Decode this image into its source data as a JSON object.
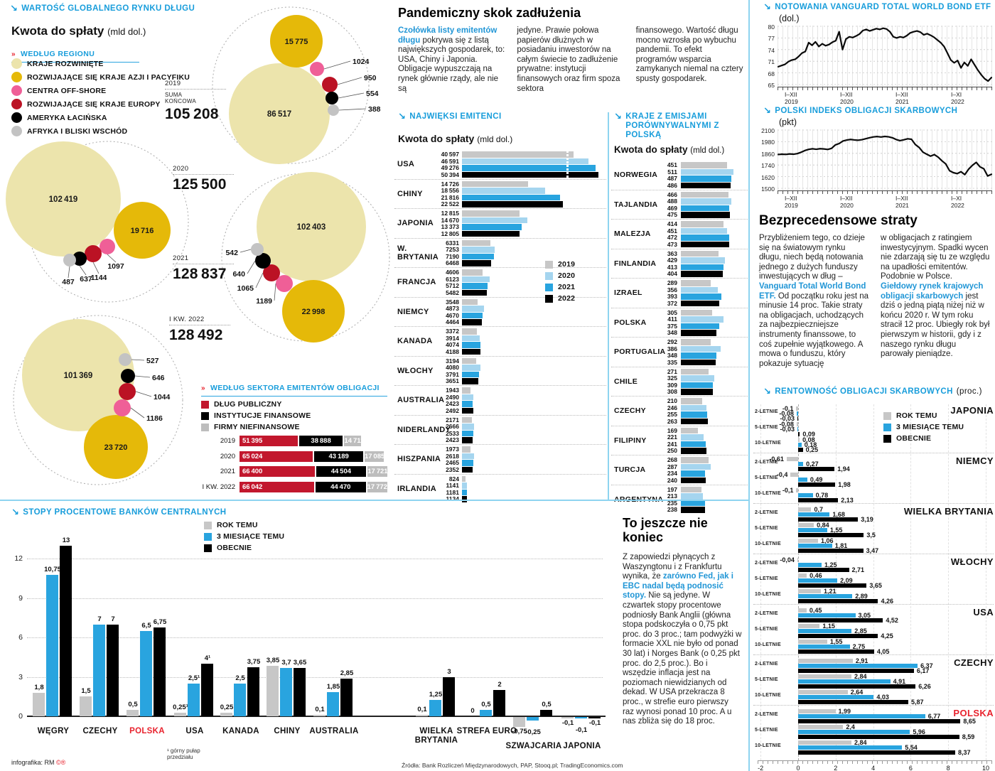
{
  "colors": {
    "accent": "#189ddb",
    "bar_gray": "#c7c7c7",
    "bar_lightblue": "#a5d5ef",
    "bar_blue": "#29a4df",
    "bar_black": "#000000",
    "public_red": "#c2172d",
    "polska_red": "#e8222d",
    "region_developed": "#ece4ac",
    "region_asia": "#e5b909",
    "region_offshore": "#ef5f97",
    "region_europe": "#bb1224",
    "region_latam": "#000000",
    "region_africa": "#c3c3c3"
  },
  "chart_data": [
    {
      "key": "global_debt_bubbles",
      "type": "bubble",
      "title": "WARTOŚĆ GLOBALNEGO RYNKU DŁUGU",
      "subtitle": "Kwota do spłaty",
      "unit": "(mld dol.)",
      "group_label": "WEDŁUG REGIONU",
      "sum_label": "SUMA KOŃCOWA",
      "legend": [
        "KRAJE ROZWINIĘTE",
        "ROZWIJAJĄCE SIĘ KRAJE AZJI I PACYFIKU",
        "CENTRA OFF-SHORE",
        "ROZWIJAJĄCE SIĘ KRAJE EUROPY",
        "AMERYKA ŁACIŃSKA",
        "AFRYKA I BLISKI WSCHÓD"
      ],
      "regions_order": [
        "developed",
        "asia_pacific",
        "offshore",
        "emerging_europe",
        "latin_america",
        "africa_middle_east"
      ],
      "years": [
        {
          "label": "2019",
          "total": 105208,
          "values": {
            "developed": 86517,
            "asia_pacific": 15775,
            "offshore": 1024,
            "emerging_europe": 950,
            "latin_america": 554,
            "africa_middle_east": 388
          }
        },
        {
          "label": "2020",
          "total": 125500,
          "values": {
            "developed": 102419,
            "asia_pacific": 19716,
            "offshore": 1097,
            "emerging_europe": 1144,
            "latin_america": 637,
            "africa_middle_east": 487
          }
        },
        {
          "label": "2021",
          "total": 128837,
          "values": {
            "developed": 102403,
            "asia_pacific": 22998,
            "offshore": 1189,
            "emerging_europe": 1065,
            "latin_america": 640,
            "africa_middle_east": 542
          }
        },
        {
          "label": "I KW. 2022",
          "total": 128492,
          "values": {
            "developed": 101369,
            "asia_pacific": 23720,
            "offshore": 1186,
            "emerging_europe": 1044,
            "latin_america": 646,
            "africa_middle_east": 527
          }
        }
      ]
    },
    {
      "key": "sector",
      "type": "stacked_bar",
      "title": "WEDŁUG SEKTORA EMITENTÓW OBLIGACJI",
      "legend": [
        "DŁUG PUBLICZNY",
        "INSTYTUCJE FINANSOWE",
        "FIRMY NIEFINANSOWE"
      ],
      "categories": [
        "2019",
        "2020",
        "2021",
        "I KW. 2022"
      ],
      "series": [
        {
          "name": "DŁUG PUBLICZNY",
          "values": [
            51395,
            65024,
            66400,
            66042
          ]
        },
        {
          "name": "INSTYTUCJE FINANSOWE",
          "values": [
            38888,
            43189,
            44504,
            44470
          ]
        },
        {
          "name": "FIRMY NIEFINANSOWE",
          "values": [
            14711,
            17085,
            17721,
            17772
          ]
        }
      ]
    },
    {
      "key": "emitters",
      "type": "bar",
      "title": "NAJWIĘKSI EMITENCI",
      "subtitle": "Kwota do spłaty",
      "unit": "(mld dol.)",
      "legend": [
        "2019",
        "2020",
        "2021",
        "2022"
      ],
      "rows": [
        {
          "country": "USA",
          "values": [
            40597,
            46591,
            49276,
            50394
          ],
          "broken": true
        },
        {
          "country": "CHINY",
          "values": [
            14726,
            18556,
            21816,
            22522
          ]
        },
        {
          "country": "JAPONIA",
          "values": [
            12815,
            14670,
            13373,
            12805
          ]
        },
        {
          "country": "W. BRYTANIA",
          "values": [
            6331,
            7253,
            7190,
            6468
          ]
        },
        {
          "country": "FRANCJA",
          "values": [
            4606,
            6123,
            5712,
            5482
          ]
        },
        {
          "country": "NIEMCY",
          "values": [
            3548,
            4873,
            4670,
            4464
          ]
        },
        {
          "country": "KANADA",
          "values": [
            3372,
            3914,
            4074,
            4188
          ]
        },
        {
          "country": "WŁOCHY",
          "values": [
            3194,
            4080,
            3791,
            3651
          ]
        },
        {
          "country": "AUSTRALIA",
          "values": [
            1943,
            2490,
            2423,
            2492
          ]
        },
        {
          "country": "NIDERLANDY",
          "values": [
            2171,
            2666,
            2533,
            2423
          ]
        },
        {
          "country": "HISZPANIA",
          "values": [
            1973,
            2618,
            2465,
            2352
          ]
        },
        {
          "country": "IRLANDIA",
          "values": [
            824,
            1141,
            1181,
            1134
          ]
        }
      ]
    },
    {
      "key": "comparable",
      "type": "bar",
      "title1": "KRAJE Z EMISJAMI",
      "title2": "PORÓWNYWALNYMI Z POLSKĄ",
      "subtitle": "Kwota do spłaty",
      "unit": "(mld dol.)",
      "rows": [
        {
          "country": "NORWEGIA",
          "values": [
            451,
            511,
            487,
            486
          ]
        },
        {
          "country": "TAJLANDIA",
          "values": [
            466,
            488,
            469,
            475
          ]
        },
        {
          "country": "MALEZJA",
          "values": [
            414,
            451,
            472,
            473
          ]
        },
        {
          "country": "FINLANDIA",
          "values": [
            363,
            429,
            413,
            404
          ]
        },
        {
          "country": "IZRAEL",
          "values": [
            289,
            356,
            393,
            372
          ]
        },
        {
          "country": "POLSKA",
          "values": [
            305,
            411,
            375,
            348
          ]
        },
        {
          "country": "PORTUGALIA",
          "values": [
            292,
            386,
            348,
            335
          ]
        },
        {
          "country": "CHILE",
          "values": [
            271,
            325,
            309,
            308
          ]
        },
        {
          "country": "CZECHY",
          "values": [
            210,
            246,
            255,
            263
          ]
        },
        {
          "country": "FILIPINY",
          "values": [
            169,
            221,
            241,
            250
          ]
        },
        {
          "country": "TURCJA",
          "values": [
            268,
            287,
            234,
            240
          ]
        },
        {
          "country": "ARGENTYNA",
          "values": [
            197,
            213,
            235,
            238
          ]
        }
      ]
    },
    {
      "key": "vanguard",
      "type": "line",
      "title": "NOTOWANIA VANGUARD TOTAL WORLD BOND ETF",
      "unit": "(dol.)",
      "ylim": [
        65,
        80
      ],
      "yticks": [
        80,
        77,
        74,
        71,
        68,
        65
      ],
      "xticks": [
        "I–XII|2019",
        "I–XII|2020",
        "I–XII|2021",
        "I–XI|2022"
      ],
      "values": [
        69.6,
        69.9,
        70.2,
        70.9,
        71.3,
        71.5,
        72.2,
        73.1,
        73.5,
        75.8,
        75.1,
        76.0,
        74.8,
        75.5,
        75.0,
        75.3,
        75.9,
        76.3,
        78.6,
        74.0,
        76.7,
        77.3,
        77.1,
        77.5,
        78.0,
        78.9,
        79.2,
        78.8,
        79.1,
        79.4,
        79.2,
        79.5,
        79.3,
        78.6,
        77.3,
        77.0,
        77.3,
        77.1,
        77.6,
        78.3,
        78.6,
        78.8,
        78.5,
        77.8,
        78.1,
        77.7,
        77.2,
        76.5,
        75.8,
        74.8,
        73.1,
        71.3,
        70.6,
        71.2,
        69.3,
        70.7,
        69.8,
        71.5,
        70.1,
        68.7,
        67.5,
        66.5,
        65.9,
        66.8
      ]
    },
    {
      "key": "polindex",
      "type": "line",
      "title": "POLSKI INDEKS OBLIGACJI SKARBOWYCH",
      "unit": "(pkt)",
      "ylim": [
        1500,
        2100
      ],
      "yticks": [
        2100,
        1980,
        1860,
        1740,
        1620,
        1500
      ],
      "xticks": [
        "I–XII|2019",
        "I–XII|2020",
        "I–XII|2021",
        "I–XI|2022"
      ],
      "values": [
        1848,
        1851,
        1849,
        1854,
        1851,
        1857,
        1871,
        1889,
        1901,
        1907,
        1902,
        1908,
        1905,
        1900,
        1911,
        1947,
        1961,
        1987,
        1997,
        2003,
        1998,
        1995,
        2001,
        2011,
        2021,
        2029,
        2033,
        2028,
        2034,
        2030,
        2020,
        2002,
        1991,
        2000,
        2010,
        2005,
        1951,
        1921,
        1873,
        1851,
        1831,
        1847,
        1821,
        1783,
        1751,
        1681,
        1661,
        1651,
        1671,
        1641,
        1697,
        1737,
        1767,
        1721,
        1701,
        1627,
        1644
      ]
    },
    {
      "key": "yields",
      "type": "bar",
      "title": "RENTOWNOŚĆ OBLIGACJI SKARBOWYCH",
      "unit": "(proc.)",
      "legend": [
        "ROK TEMU",
        "3 MIESIĄCE TEMU",
        "OBECNIE"
      ],
      "maturities": [
        "2-LETNIE",
        "5-LETNIE",
        "10-LETNIE"
      ],
      "xticks": [
        -2,
        0,
        2,
        4,
        6,
        8,
        10
      ],
      "countries": [
        {
          "name": "JAPONIA",
          "rows": [
            [
              -0.1,
              -0.08,
              -0.03
            ],
            [
              -0.08,
              -0.03,
              0.09
            ],
            [
              0.08,
              0.18,
              0.25
            ]
          ]
        },
        {
          "name": "NIEMCY",
          "rows": [
            [
              -0.61,
              0.27,
              1.94
            ],
            [
              -0.4,
              0.49,
              1.98
            ],
            [
              -0.1,
              0.78,
              2.13
            ]
          ]
        },
        {
          "name": "WIELKA BRYTANIA",
          "rows": [
            [
              0.7,
              1.68,
              3.19
            ],
            [
              0.84,
              1.55,
              3.5
            ],
            [
              1.06,
              1.81,
              3.47
            ]
          ]
        },
        {
          "name": "WŁOCHY",
          "rows": [
            [
              -0.04,
              1.25,
              2.71
            ],
            [
              0.46,
              2.09,
              3.65
            ],
            [
              1.21,
              2.89,
              4.26
            ]
          ]
        },
        {
          "name": "USA",
          "rows": [
            [
              0.45,
              3.05,
              4.52
            ],
            [
              1.15,
              2.85,
              4.25
            ],
            [
              1.55,
              2.75,
              4.05
            ]
          ]
        },
        {
          "name": "CZECHY",
          "rows": [
            [
              2.91,
              6.37,
              6.17
            ],
            [
              2.84,
              4.91,
              6.26
            ],
            [
              2.64,
              4.03,
              5.87
            ]
          ]
        },
        {
          "name": "POLSKA",
          "highlight": true,
          "rows": [
            [
              1.99,
              6.77,
              8.65
            ],
            [
              2.4,
              5.96,
              8.59
            ],
            [
              2.84,
              5.54,
              8.37
            ]
          ]
        }
      ]
    },
    {
      "key": "rates",
      "type": "grouped_bar",
      "title": "STOPY PROCENTOWE BANKÓW CENTRALNYCH",
      "legend": [
        "ROK TEMU",
        "3 MIESIĄCE TEMU",
        "OBECNIE"
      ],
      "yticks": [
        0,
        3,
        6,
        9,
        12
      ],
      "footnote": "¹ górny pułap przedziału",
      "groups": [
        {
          "name": "WĘGRY",
          "values": [
            1.8,
            10.75,
            13
          ],
          "labels": [
            "1,8",
            "10,75",
            "13"
          ]
        },
        {
          "name": "CZECHY",
          "values": [
            1.5,
            7,
            7
          ],
          "labels": [
            "1,5",
            "7",
            "7"
          ]
        },
        {
          "name": "POLSKA",
          "highlight": true,
          "values": [
            0.5,
            6.5,
            6.75
          ],
          "labels": [
            "0,5",
            "6,5",
            "6,75"
          ]
        },
        {
          "name": "USA",
          "values": [
            0.25,
            2.5,
            4
          ],
          "labels": [
            "0,25¹",
            "2,5¹",
            "4¹"
          ],
          "footnote": true
        },
        {
          "name": "KANADA",
          "values": [
            0.25,
            2.5,
            3.75
          ],
          "labels": [
            "0,25",
            "2,5",
            "3,75"
          ]
        },
        {
          "name": "CHINY",
          "values": [
            3.85,
            3.7,
            3.65
          ],
          "labels": [
            "3,85",
            "3,7",
            "3,65"
          ]
        },
        {
          "name": "AUSTRALIA",
          "values": [
            0.1,
            1.85,
            2.85
          ],
          "labels": [
            "0,1",
            "1,85",
            "2,85"
          ]
        },
        {
          "name": "WIELKA BRYTANIA",
          "values": [
            0.1,
            1.25,
            3
          ],
          "labels": [
            "0,1",
            "1,25",
            "3"
          ],
          "gap_before": true
        },
        {
          "name": "STREFA EURO",
          "values": [
            0,
            0.5,
            2
          ],
          "labels": [
            "0",
            "0,5",
            "2"
          ]
        },
        {
          "name": "SZWAJCARIA",
          "values": [
            -0.75,
            -0.25,
            0.5
          ],
          "labels": [
            "-0,75",
            "-0,25",
            "0,5"
          ],
          "low_label": true
        },
        {
          "name": "JAPONIA",
          "values": [
            -0.1,
            -0.1,
            -0.1
          ],
          "labels": [
            "-0,1",
            "-0,1",
            "-0,1"
          ],
          "low_label": true
        }
      ]
    }
  ],
  "articles": {
    "pandemic": {
      "title": "Pandemiczny skok zadłużenia",
      "columns": [
        [
          {
            "t": "Czołówka listy emitentów długu ",
            "b": true
          },
          {
            "t": "pokrywa się z listą największych gospodarek, to: USA, Chiny i Japonia. Obligacje wypuszczają na rynek głównie rządy, ale nie są"
          }
        ],
        [
          {
            "t": "jedyne. Prawie połowa papierów dłużnych w posiadaniu inwestorów na całym świecie to zadłużenie prywatne: instytucji finansowych oraz firm spoza sektora"
          }
        ],
        [
          {
            "t": "finansowego. Wartość długu mocno wzrosła po wybuchu pandemii. To efekt programów wsparcia zamykanych niemal na cztery spusty gospodarek."
          }
        ]
      ]
    },
    "losses": {
      "title": "Bezprecedensowe straty",
      "columns": [
        [
          {
            "t": "Przybliżeniem tego, co dzieje się na światowym rynku długu, niech będą notowania jednego z dużych funduszy inwestujących w dług – "
          },
          {
            "t": "Vanguard Total World Bond ETF.",
            "b": true
          },
          {
            "t": " Od początku roku jest na minusie 14 proc. Takie straty na obligacjach, uchodzących za najbezpieczniejsze instrumenty finanssowe, to coś zupełnie wyjątkowego. A mowa o funduszu, który pokazuje sytuację"
          }
        ],
        [
          {
            "t": "w obligacjach z ratingiem inwestycyjnym. Spadki wycen nie zdarzają się tu ze względu na upadłości emitentów. Podobnie w Polsce. "
          },
          {
            "t": "Giełdowy rynek krajowych obligacji skarbowych",
            "b": true
          },
          {
            "t": " jest dziś o jedną piątą niżej niż w końcu 2020 r. W tym roku stracił 12 proc. Ubiegły rok był pierwszym w historii, gdy i z naszego rynku długu parowały pieniądze."
          }
        ]
      ]
    },
    "not_over": {
      "title": "To jeszcze nie koniec",
      "columns": [
        [
          {
            "t": "Z zapowiedzi płynących z Waszyngtonu i z Frankfurtu wynika, że "
          },
          {
            "t": "zarówno Fed, jak i EBC nadal będą podnosić stopy.",
            "b": true
          },
          {
            "t": " Nie są jedyne. W czwartek stopy procentowe podniosły Bank Anglii (główna stopa podskoczyła o 0,75 pkt proc. do 3 proc.; tam podwyżki w formacie XXL nie było od ponad 30 lat) i Norges Bank (o 0,25 pkt proc. do 2,5 proc.). Bo i wszędzie inflacja jest na poziomach niewidzianych od dekad. W USA przekracza 8 proc., w strefie euro pierwszy raz wynosi ponad 10 proc. A u nas zbliża się do 18 proc."
          }
        ]
      ]
    }
  },
  "footer": {
    "credit": "infografika: RM",
    "credit_marks": "©®",
    "sources": "Źródła: Bank Rozliczeń Międzynarodowych, PAP, Stooq.pl; TradingEconomics.com"
  }
}
